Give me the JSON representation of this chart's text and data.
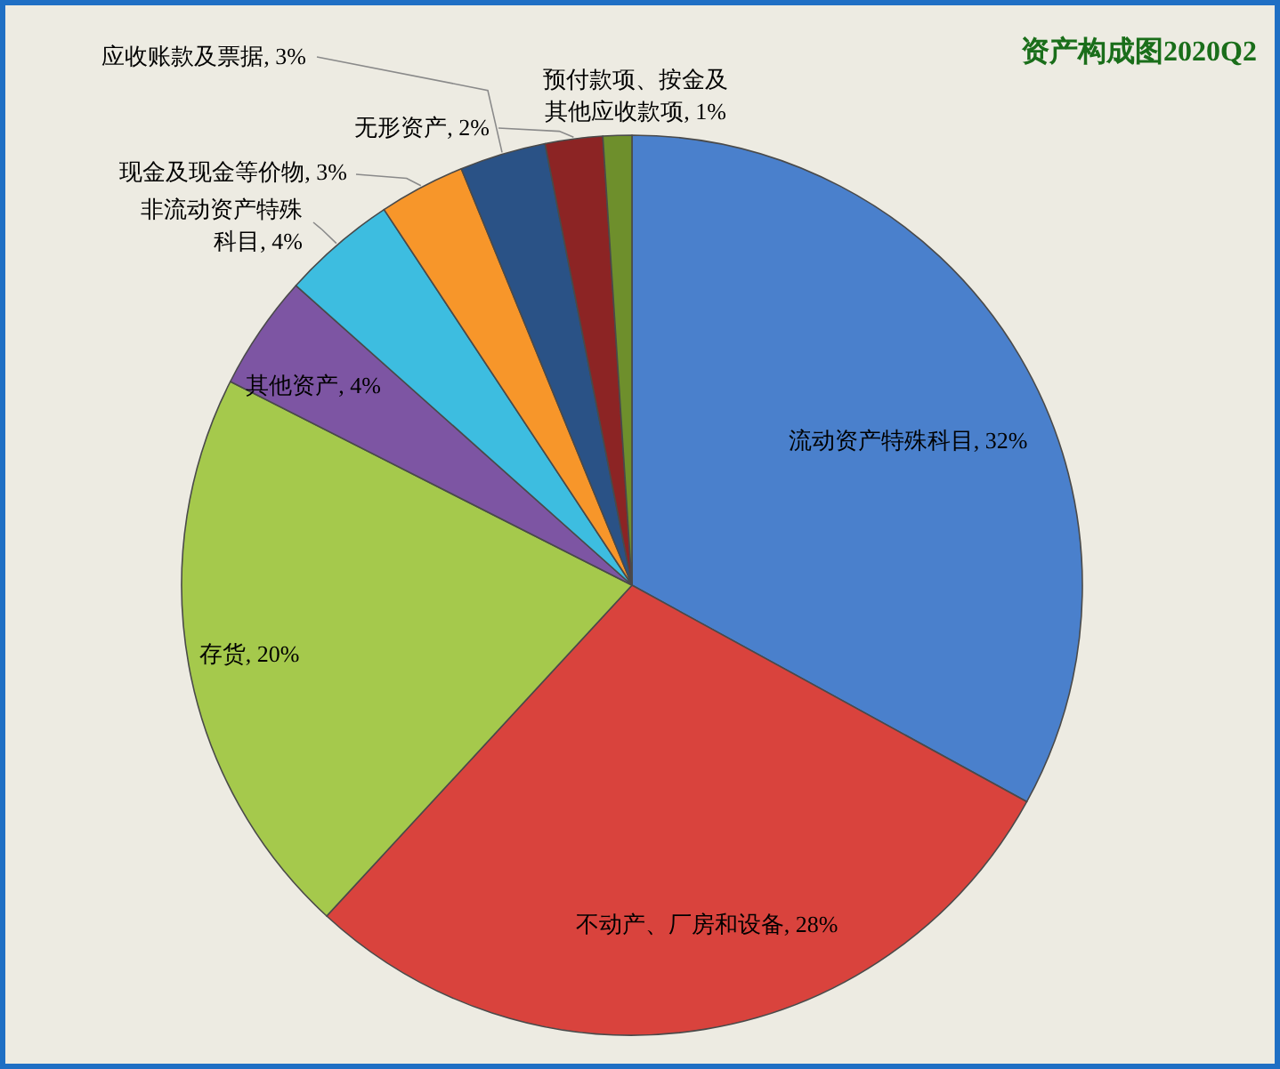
{
  "chart_data": {
    "type": "pie",
    "title": "资产构成图2020Q2",
    "categories": [
      "流动资产特殊科目",
      "不动产、厂房和设备",
      "存货",
      "其他资产",
      "非流动资产特殊科目",
      "现金及现金等价物",
      "应收账款及票据",
      "无形资产",
      "预付款项、按金及其他应收款项"
    ],
    "values": [
      32,
      28,
      20,
      4,
      4,
      3,
      3,
      2,
      1
    ],
    "value_labels": [
      "32%",
      "28%",
      "20%",
      "4%",
      "4%",
      "3%",
      "3%",
      "2%",
      "1%"
    ],
    "colors": [
      "#4a80cc",
      "#d9433d",
      "#a5c94c",
      "#7d55a3",
      "#3dbde0",
      "#f7962a",
      "#2a5286",
      "#8c2424",
      "#6e8f2c"
    ]
  }
}
